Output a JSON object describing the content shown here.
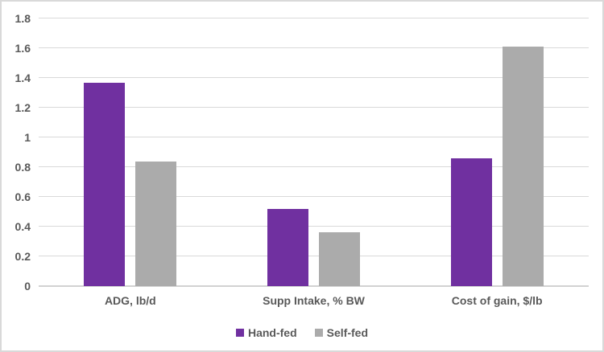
{
  "chart": {
    "background": "#FFFFFF",
    "border_color": "#D9D9D9",
    "gridline_color": "#D9D9D9",
    "axis_line_color": "#D2D2D2",
    "label_color": "#595959"
  },
  "chart_data": {
    "type": "bar",
    "categories": [
      "ADG, lb/d",
      "Supp Intake, % BW",
      "Cost of gain, $/lb"
    ],
    "series": [
      {
        "name": "Hand-fed",
        "color": "#7030A0",
        "values": [
          1.37,
          0.52,
          0.86
        ]
      },
      {
        "name": "Self-fed",
        "color": "#ABABAB",
        "values": [
          0.84,
          0.36,
          1.61
        ]
      }
    ],
    "xlabel": "",
    "ylabel": "",
    "ylim": [
      0,
      1.8
    ],
    "ytick_step": 0.2,
    "yticks": [
      "0",
      "0.2",
      "0.4",
      "0.6",
      "0.8",
      "1",
      "1.2",
      "1.4",
      "1.6",
      "1.8"
    ],
    "grid": true,
    "legend_position": "bottom"
  }
}
